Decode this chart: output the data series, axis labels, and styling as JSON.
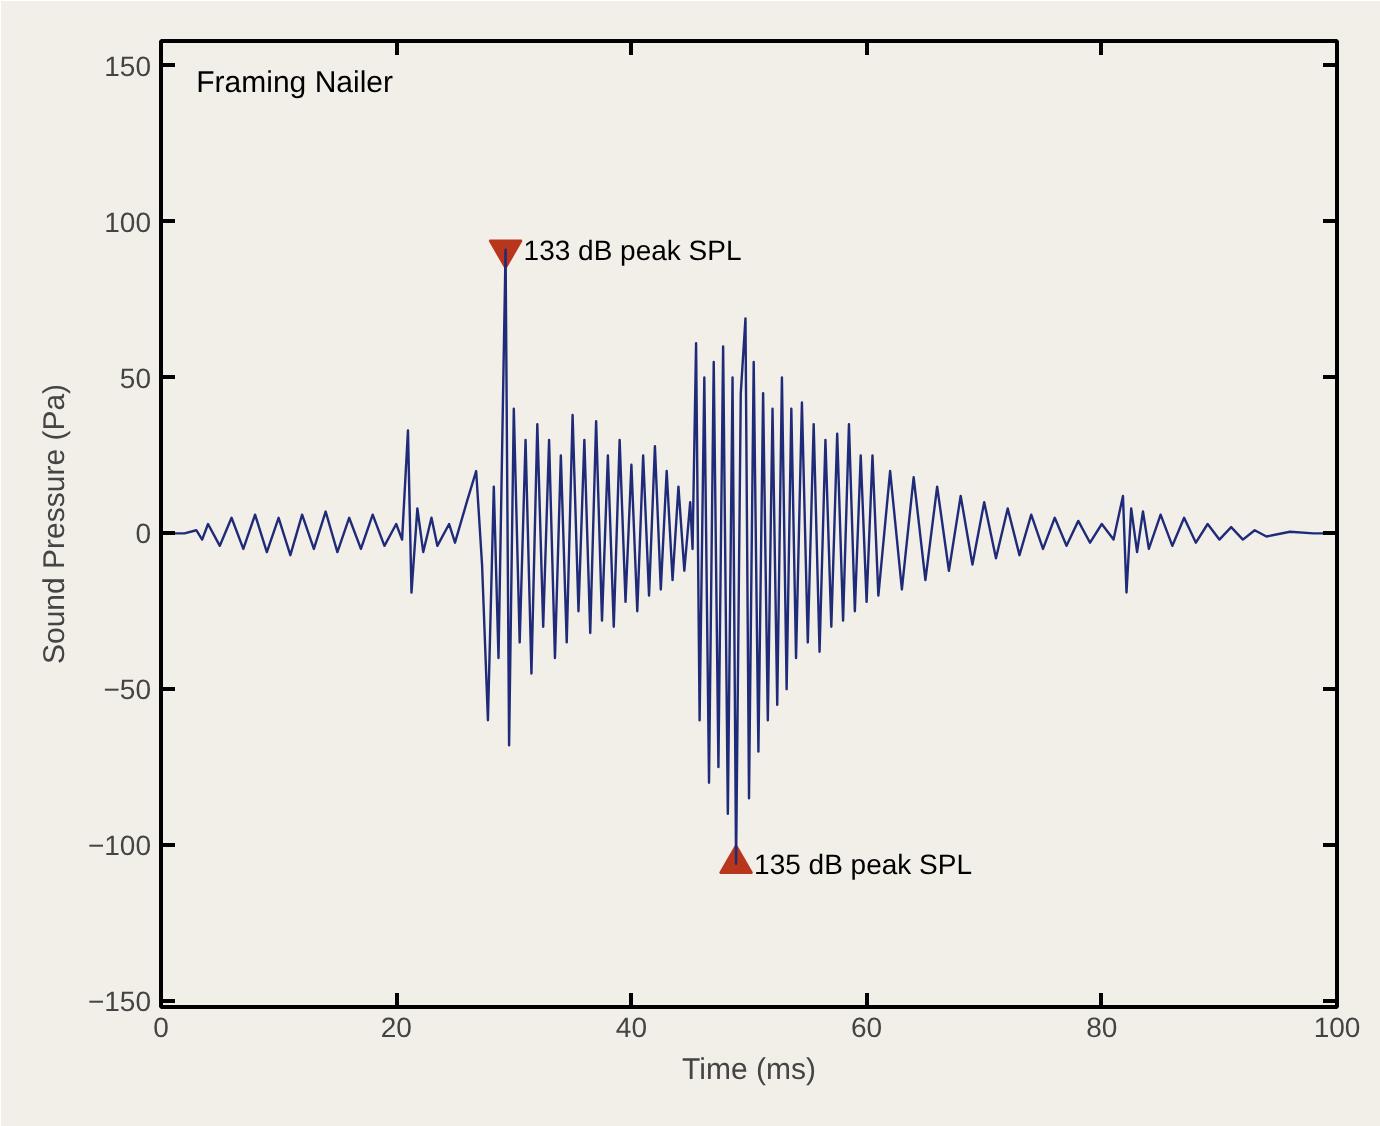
{
  "chart_data": {
    "type": "line",
    "title": "Framing Nailer",
    "xlabel": "Time (ms)",
    "ylabel": "Sound Pressure (Pa)",
    "xlim": [
      0,
      100
    ],
    "ylim": [
      -152,
      158
    ],
    "xticks": [
      0,
      20,
      40,
      60,
      80,
      100
    ],
    "yticks": [
      -150,
      -100,
      -50,
      0,
      50,
      100,
      150
    ],
    "grid": false,
    "marker": "none",
    "line_style": "solid",
    "annotations": [
      {
        "text": "133 dB peak SPL",
        "x": 29.3,
        "y": 91
      },
      {
        "text": "135 dB peak SPL",
        "x": 48.9,
        "y": -106
      }
    ],
    "series": [
      {
        "type": "scatter",
        "marker": "triangle",
        "color": "#b8361c",
        "x": [
          29.3,
          48.9
        ],
        "values": [
          91,
          -106
        ]
      },
      {
        "color": "#1f2a78",
        "x": [
          0,
          2,
          3,
          3.5,
          4,
          5,
          6,
          7,
          8,
          9,
          10,
          11,
          12,
          13,
          14,
          15,
          16,
          17,
          18,
          19,
          20,
          20.5,
          21,
          21.3,
          21.8,
          22.3,
          23,
          23.5,
          24.5,
          25,
          26,
          26.8,
          27.3,
          27.8,
          28.3,
          28.7,
          29.3,
          29.6,
          30,
          30.5,
          31,
          31.5,
          32,
          32.5,
          33,
          33.5,
          34,
          34.5,
          35,
          35.5,
          36,
          36.5,
          37,
          37.5,
          38,
          38.5,
          39,
          39.5,
          40,
          40.5,
          41,
          41.5,
          42,
          42.5,
          43,
          43.5,
          44,
          44.5,
          45,
          45.2,
          45.5,
          45.8,
          46.2,
          46.6,
          47,
          47.4,
          47.8,
          48.2,
          48.6,
          48.9,
          49.3,
          49.7,
          50,
          50.4,
          50.8,
          51.2,
          51.6,
          52,
          52.4,
          52.8,
          53.2,
          53.6,
          54,
          54.5,
          55,
          55.5,
          56,
          56.5,
          57,
          57.5,
          58,
          58.5,
          59,
          59.5,
          60,
          60.5,
          61,
          62,
          63,
          64,
          65,
          66,
          67,
          68,
          69,
          70,
          71,
          72,
          73,
          74,
          75,
          76,
          77,
          78,
          79,
          80,
          81,
          81.8,
          82.1,
          82.5,
          83,
          83.5,
          84,
          85,
          86,
          87,
          88,
          89,
          90,
          91,
          92,
          93,
          94,
          96,
          98,
          100
        ],
        "values": [
          0,
          0,
          1,
          -2,
          3,
          -4,
          5,
          -5,
          6,
          -6,
          5,
          -7,
          6,
          -5,
          7,
          -6,
          5,
          -5,
          6,
          -4,
          3,
          -2,
          33,
          -19,
          8,
          -6,
          5,
          -4,
          3,
          -3,
          10,
          20,
          -10,
          -60,
          15,
          -40,
          91,
          -68,
          40,
          -35,
          30,
          -45,
          35,
          -30,
          30,
          -40,
          25,
          -35,
          38,
          -25,
          30,
          -32,
          36,
          -28,
          25,
          -30,
          30,
          -22,
          22,
          -25,
          25,
          -20,
          28,
          -18,
          20,
          -15,
          15,
          -12,
          10,
          -5,
          61,
          -60,
          50,
          -80,
          55,
          -75,
          60,
          -90,
          50,
          -106,
          45,
          69,
          -85,
          55,
          -70,
          45,
          -60,
          40,
          -55,
          50,
          -50,
          40,
          -40,
          42,
          -35,
          35,
          -38,
          30,
          -30,
          32,
          -28,
          35,
          -25,
          25,
          -22,
          25,
          -20,
          20,
          -18,
          18,
          -15,
          15,
          -12,
          12,
          -10,
          10,
          -8,
          8,
          -7,
          6,
          -5,
          5,
          -4,
          4,
          -3,
          3,
          -2,
          12,
          -19,
          8,
          -6,
          7,
          -5,
          6,
          -4,
          5,
          -3,
          3,
          -2,
          2,
          -2,
          1,
          -1,
          0.5,
          0,
          0
        ]
      }
    ]
  }
}
